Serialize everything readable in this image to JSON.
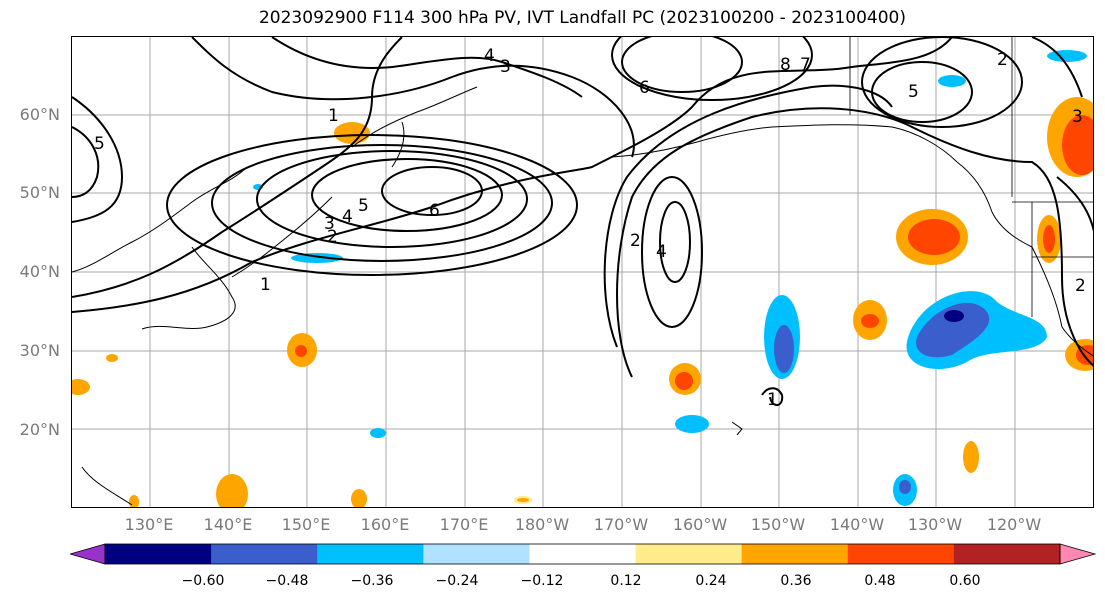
{
  "title": "2023092900 F114 300 hPa PV, IVT Landfall PC (2023100200 - 2023100400)",
  "lat_labels": [
    "60°N",
    "50°N",
    "40°N",
    "30°N",
    "20°N"
  ],
  "lon_labels": [
    "130°E",
    "140°E",
    "150°E",
    "160°E",
    "170°E",
    "180°W",
    "170°W",
    "160°W",
    "150°W",
    "140°W",
    "130°W",
    "120°W"
  ],
  "contour_labels": [
    "1",
    "2",
    "3",
    "4",
    "5",
    "6",
    "7",
    "8"
  ],
  "colorbar": {
    "colors": [
      "#9932cc",
      "#000080",
      "#3a5fcd",
      "#00bfff",
      "#b0e2ff",
      "#ffffff",
      "#ffec8b",
      "#ffa500",
      "#ff4500",
      "#b22222",
      "#ff88b0"
    ],
    "tick_labels": [
      "−0.60",
      "−0.48",
      "−0.36",
      "−0.24",
      "−0.12",
      "0.12",
      "0.24",
      "0.36",
      "0.48",
      "0.60"
    ]
  }
}
